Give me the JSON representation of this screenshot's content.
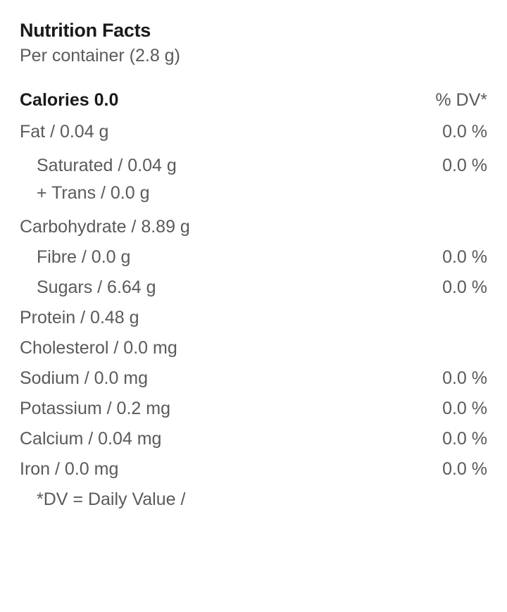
{
  "title": "Nutrition Facts",
  "serving": "Per container (2.8 g)",
  "calories_label": "Calories 0.0",
  "dv_header": "% DV*",
  "rows": {
    "fat": {
      "label": "Fat / 0.04 g",
      "value": "0.0 %"
    },
    "sat": {
      "label": "Saturated / 0.04 g"
    },
    "trans": {
      "label": "+ Trans / 0.0 g"
    },
    "sat_trans_value": "0.0 %",
    "carb": {
      "label": "Carbohydrate / 8.89 g"
    },
    "fibre": {
      "label": "Fibre / 0.0 g",
      "value": "0.0 %"
    },
    "sugars": {
      "label": "Sugars / 6.64 g",
      "value": "0.0 %"
    },
    "protein": {
      "label": "Protein / 0.48 g"
    },
    "chol": {
      "label": "Cholesterol / 0.0 mg"
    },
    "sodium": {
      "label": "Sodium / 0.0 mg",
      "value": "0.0 %"
    },
    "potassium": {
      "label": "Potassium / 0.2 mg",
      "value": "0.0 %"
    },
    "calcium": {
      "label": "Calcium / 0.04 mg",
      "value": "0.0 %"
    },
    "iron": {
      "label": "Iron / 0.0 mg",
      "value": "0.0 %"
    }
  },
  "footnote": "*DV = Daily Value /",
  "colors": {
    "text_primary": "#1a1a1a",
    "text_secondary": "#5a5a5a",
    "background": "#ffffff"
  },
  "typography": {
    "title_fontsize": 27,
    "body_fontsize": 25,
    "title_weight": 700,
    "body_weight": 400
  }
}
